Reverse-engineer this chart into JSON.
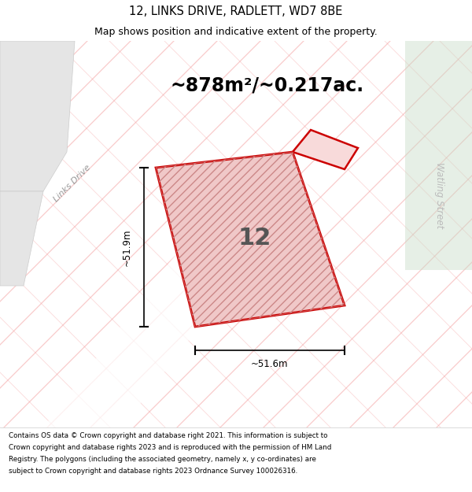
{
  "title_line1": "12, LINKS DRIVE, RADLETT, WD7 8BE",
  "title_line2": "Map shows position and indicative extent of the property.",
  "area_text": "~878m²/~0.217ac.",
  "label_number": "12",
  "dim_vertical": "~51.9m",
  "dim_horizontal": "~51.6m",
  "street_label_1": "Links Drive",
  "street_label_2": "Watling Street",
  "footer_text": "Contains OS data © Crown copyright and database right 2021. This information is subject to Crown copyright and database rights 2023 and is reproduced with the permission of HM Land Registry. The polygons (including the associated geometry, namely x, y co-ordinates) are subject to Crown copyright and database rights 2023 Ordnance Survey 100026316.",
  "road_lines_color": "#f5a0a0",
  "plot_outline_color": "#cc0000",
  "plot_fill_color": "#f0c8c8"
}
